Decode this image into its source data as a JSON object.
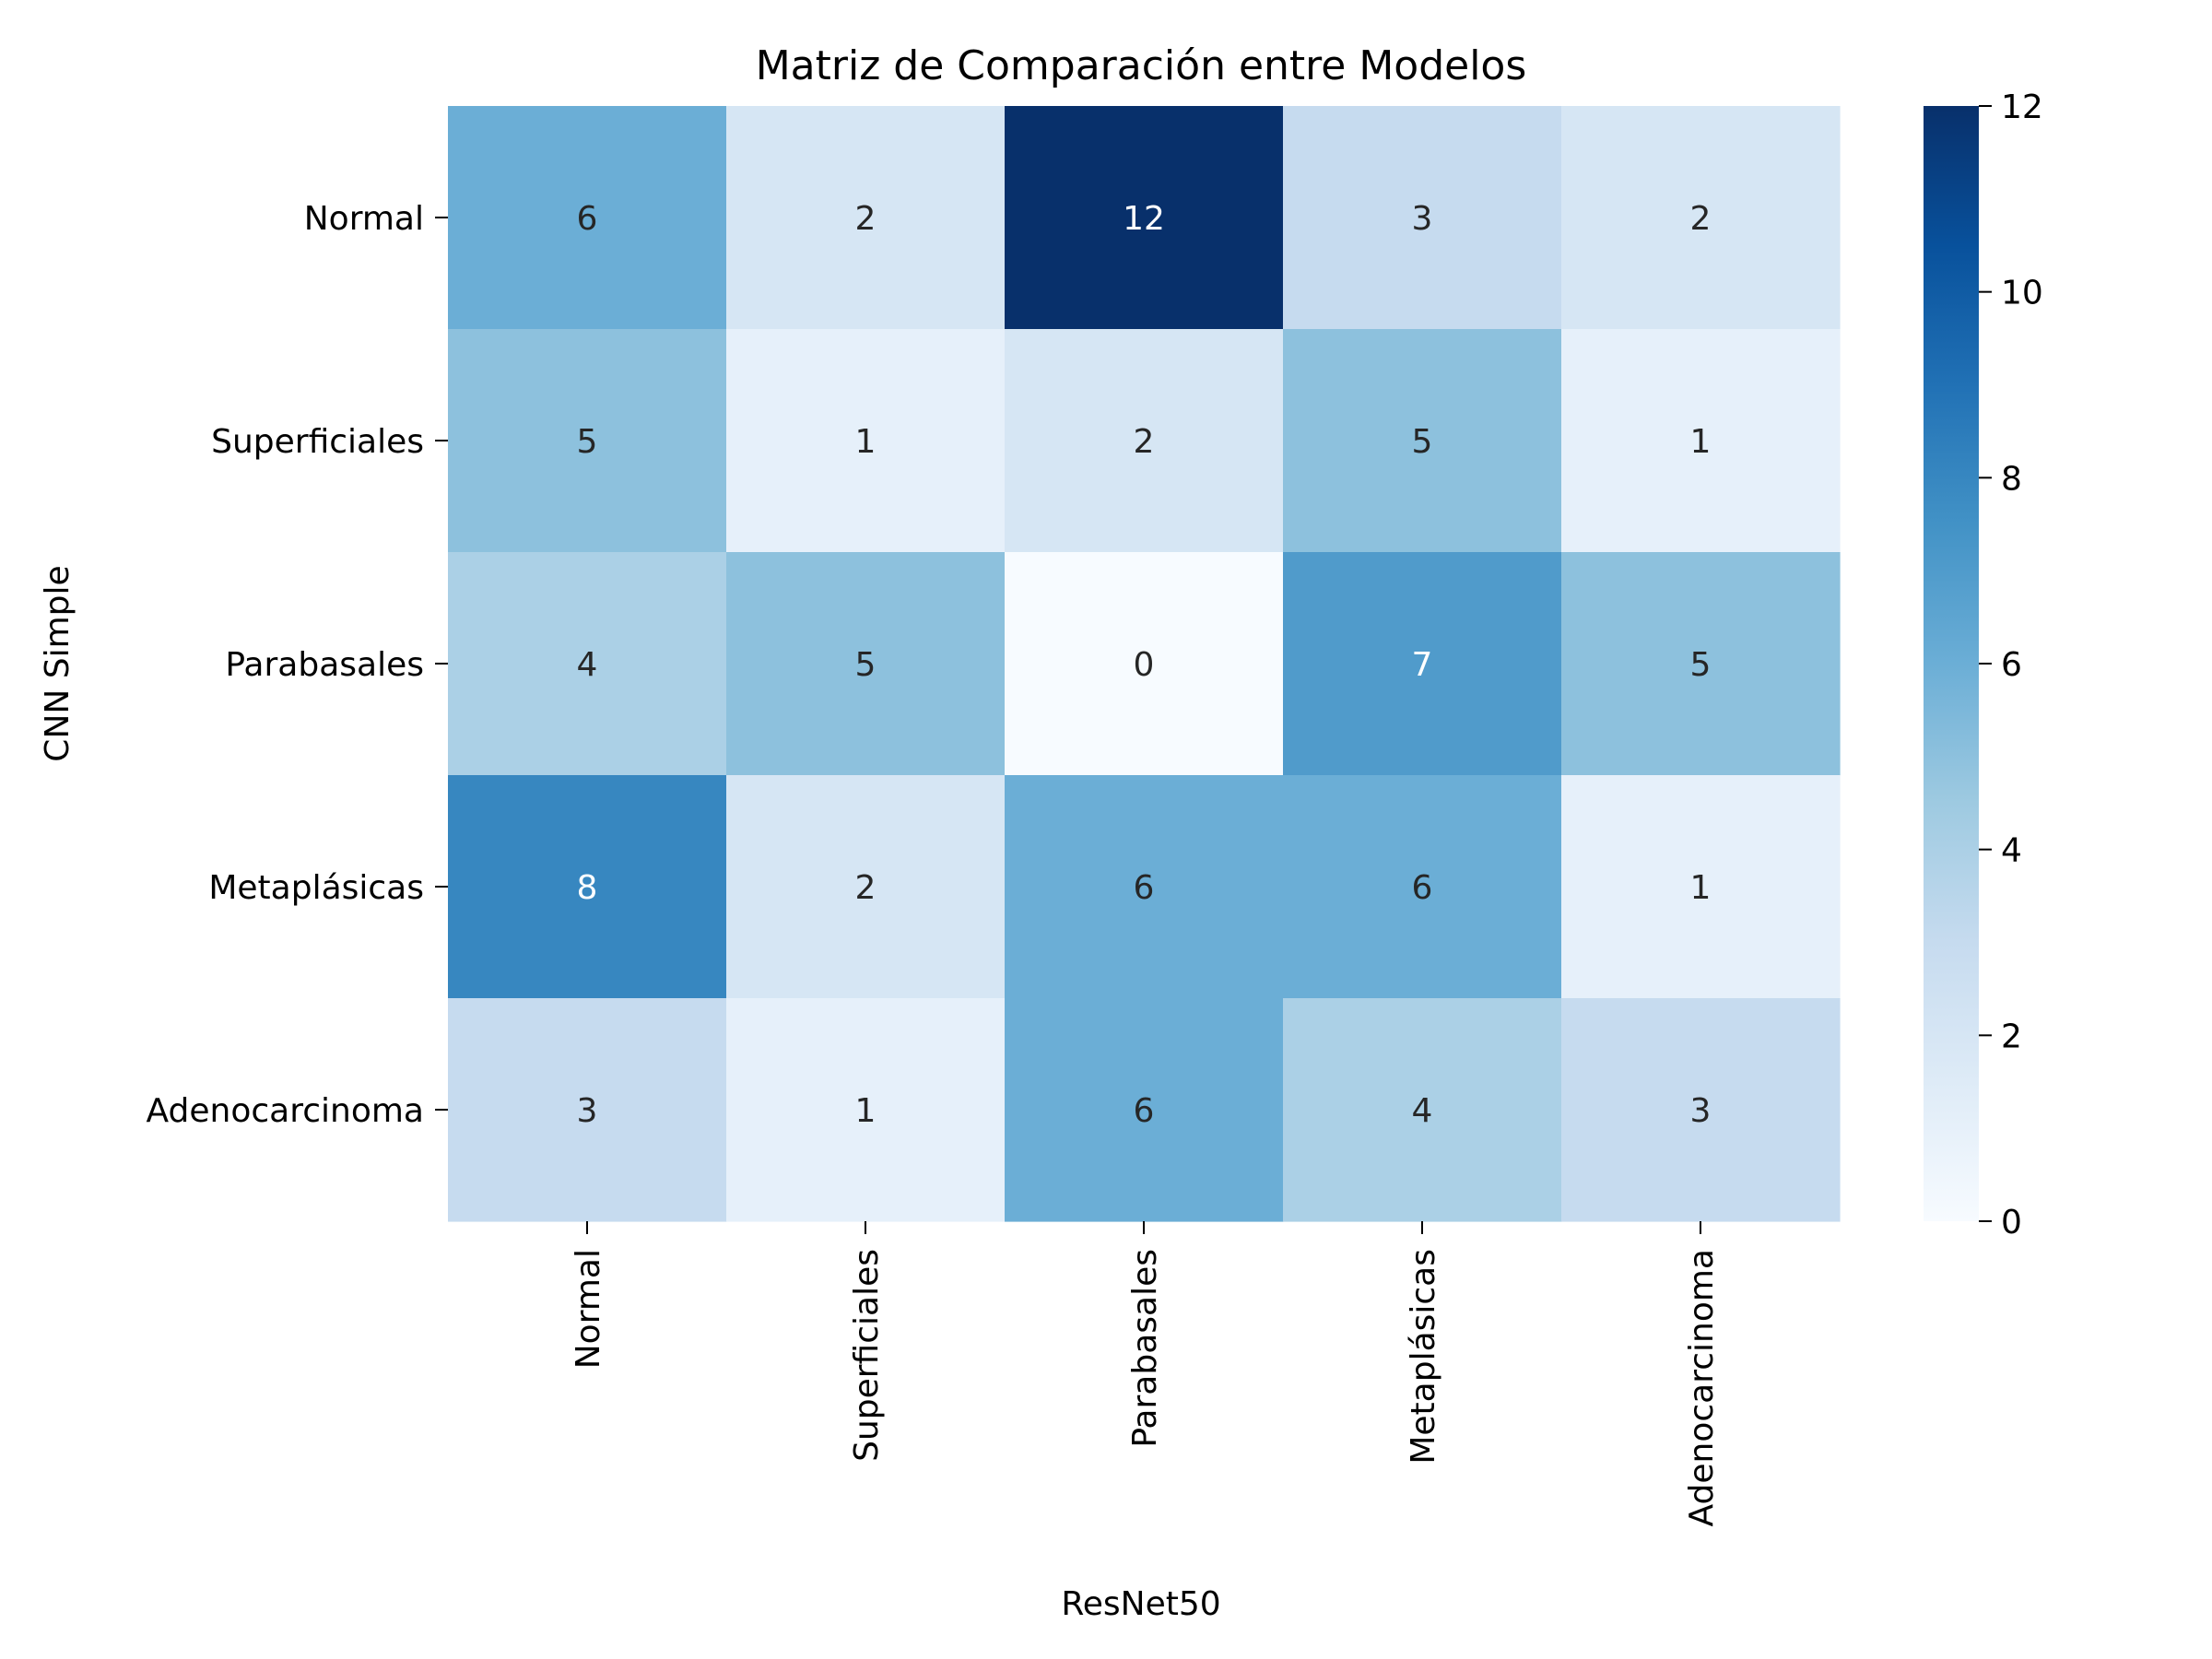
{
  "chart_data": {
    "type": "heatmap",
    "title": "Matriz de Comparación entre Modelos",
    "xlabel": "ResNet50",
    "ylabel": "CNN Simple",
    "x_categories": [
      "Normal",
      "Superficiales",
      "Parabasales",
      "Metaplásicas",
      "Adenocarcinoma"
    ],
    "y_categories": [
      "Normal",
      "Superficiales",
      "Parabasales",
      "Metaplásicas",
      "Adenocarcinoma"
    ],
    "values": [
      [
        6,
        2,
        12,
        3,
        2
      ],
      [
        5,
        1,
        2,
        5,
        1
      ],
      [
        4,
        5,
        0,
        7,
        5
      ],
      [
        8,
        2,
        6,
        6,
        1
      ],
      [
        3,
        1,
        6,
        4,
        3
      ]
    ],
    "colorbar": {
      "range": [
        0,
        12
      ],
      "ticks": [
        0,
        2,
        4,
        6,
        8,
        10,
        12
      ],
      "colormap": "Blues",
      "colors": [
        "#f7fbff",
        "#deebf7",
        "#c6dbef",
        "#9ecae1",
        "#6baed6",
        "#4292c6",
        "#2171b5",
        "#08519c",
        "#08306b"
      ]
    },
    "annotations": "cell values shown",
    "grid": false
  }
}
